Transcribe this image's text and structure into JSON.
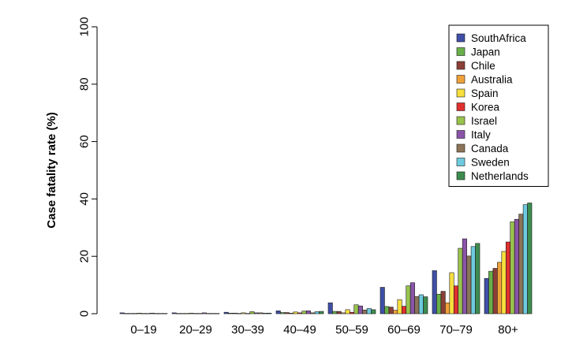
{
  "chart_data": {
    "type": "bar",
    "title": "",
    "xlabel": "",
    "ylabel": "Case fatality rate (%)",
    "ylim": [
      0,
      100
    ],
    "yticks": [
      0,
      20,
      40,
      60,
      80,
      100
    ],
    "legend_position": "top-right",
    "grid": false,
    "categories": [
      "0–19",
      "20–29",
      "30–39",
      "40–49",
      "50–59",
      "60–69",
      "70–79",
      "80+"
    ],
    "series": [
      {
        "name": "SouthAfrica",
        "color": "#3f4fa6",
        "values": [
          0.3,
          0.3,
          0.5,
          1.0,
          3.8,
          9.2,
          15.0,
          12.3
        ]
      },
      {
        "name": "Japan",
        "color": "#68b04a",
        "values": [
          0.1,
          0.1,
          0.2,
          0.4,
          0.8,
          2.5,
          6.8,
          14.8
        ]
      },
      {
        "name": "Chile",
        "color": "#8b3f36",
        "values": [
          0.1,
          0.1,
          0.2,
          0.4,
          0.8,
          2.3,
          7.8,
          15.8
        ]
      },
      {
        "name": "Australia",
        "color": "#f0a13a",
        "values": [
          0.1,
          0.1,
          0.1,
          0.2,
          0.3,
          1.2,
          3.8,
          17.9
        ]
      },
      {
        "name": "Spain",
        "color": "#f7df3e",
        "values": [
          0.2,
          0.2,
          0.3,
          0.6,
          1.4,
          4.9,
          14.3,
          21.7
        ]
      },
      {
        "name": "Korea",
        "color": "#e0302e",
        "values": [
          0.1,
          0.1,
          0.1,
          0.3,
          0.5,
          2.6,
          9.7,
          25.0
        ]
      },
      {
        "name": "Israel",
        "color": "#98c34d",
        "values": [
          0.1,
          0.1,
          0.7,
          0.9,
          3.1,
          9.7,
          22.8,
          32.0
        ]
      },
      {
        "name": "Italy",
        "color": "#8a55a8",
        "values": [
          0.2,
          0.3,
          0.3,
          1.0,
          2.7,
          10.8,
          26.1,
          32.9
        ]
      },
      {
        "name": "Canada",
        "color": "#8c7458",
        "values": [
          0.1,
          0.1,
          0.3,
          0.3,
          1.3,
          6.0,
          20.1,
          34.7
        ]
      },
      {
        "name": "Sweden",
        "color": "#6ecbdf",
        "values": [
          0.1,
          0.1,
          0.2,
          0.7,
          1.8,
          6.6,
          23.4,
          38.0
        ]
      },
      {
        "name": "Netherlands",
        "color": "#3d8c4f",
        "values": [
          0.1,
          0.1,
          0.2,
          0.8,
          1.4,
          5.9,
          24.5,
          38.6
        ]
      }
    ]
  }
}
